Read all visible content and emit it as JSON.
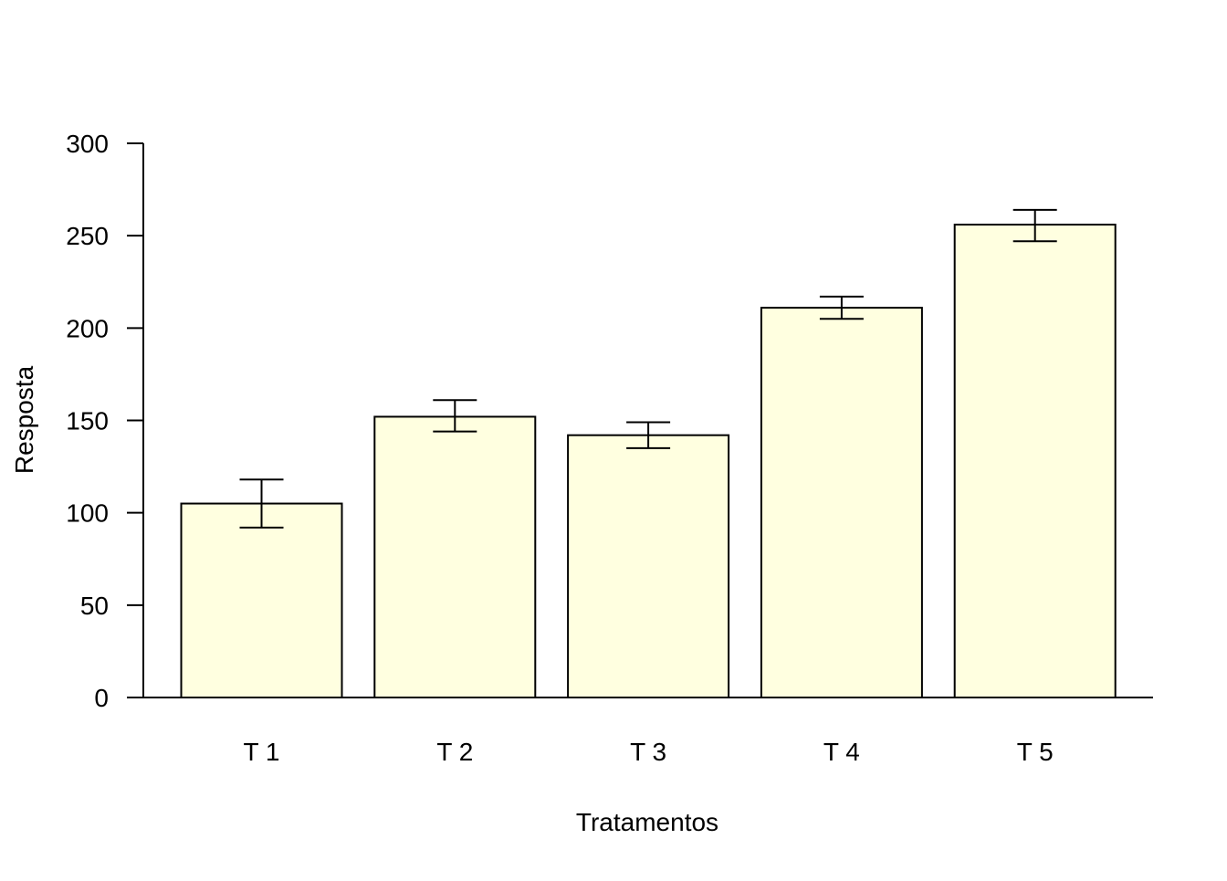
{
  "chart_data": {
    "type": "bar",
    "title": "",
    "xlabel": "Tratamentos",
    "ylabel": "Resposta",
    "categories": [
      "T 1",
      "T 2",
      "T 3",
      "T 4",
      "T 5"
    ],
    "values": [
      105,
      152,
      142,
      211,
      256
    ],
    "error_low": [
      92,
      144,
      135,
      205,
      247
    ],
    "error_high": [
      118,
      161,
      149,
      217,
      264
    ],
    "ylim": [
      0,
      300
    ],
    "yticks": [
      0,
      50,
      100,
      150,
      200,
      250,
      300
    ],
    "ytick_labels": [
      "0",
      "50",
      "100",
      "150",
      "200",
      "250",
      "300"
    ],
    "grid": false,
    "legend": "none",
    "bar_color": "#ffffe0",
    "edge_color": "#000000"
  }
}
